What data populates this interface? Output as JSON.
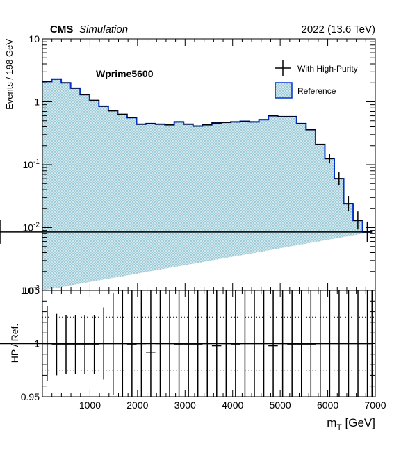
{
  "header": {
    "experiment": "CMS",
    "status": "Simulation",
    "energy_label": "2022 (13.6 TeV)"
  },
  "chart_data": [
    {
      "type": "histogram",
      "panel": "main",
      "annotation": "Wprime5600",
      "ylabel": "Events / 198 GeV",
      "yscale": "log",
      "ylim": [
        0.001,
        10
      ],
      "y_ticks": [
        {
          "value": 10,
          "base": "10",
          "exp": ""
        },
        {
          "value": 1,
          "base": "1",
          "exp": ""
        },
        {
          "value": 0.1,
          "base": "10",
          "exp": "-1"
        },
        {
          "value": 0.01,
          "base": "10",
          "exp": "-2"
        },
        {
          "value": 0.001,
          "base": "10",
          "exp": "-3"
        }
      ],
      "xlim": [
        0,
        7000
      ],
      "bin_width": 198,
      "bin_edges": [
        0,
        198,
        396,
        594,
        792,
        990,
        1188,
        1386,
        1584,
        1782,
        1980,
        2178,
        2376,
        2574,
        2772,
        2970,
        3168,
        3366,
        3564,
        3762,
        3960,
        4158,
        4356,
        4554,
        4752,
        4950,
        5148,
        5346,
        5544,
        5742,
        5940,
        6138,
        6336,
        6534,
        6732,
        6930
      ],
      "series": [
        {
          "name": "Reference",
          "style": "filled-step",
          "line_color": "#0033cc",
          "fill_color": "#b9dde6",
          "values": [
            2.1,
            2.3,
            2.0,
            1.65,
            1.3,
            1.05,
            0.85,
            0.72,
            0.63,
            0.56,
            0.44,
            0.45,
            0.44,
            0.43,
            0.48,
            0.44,
            0.41,
            0.43,
            0.46,
            0.47,
            0.48,
            0.49,
            0.48,
            0.52,
            0.6,
            0.58,
            0.58,
            0.45,
            0.36,
            0.21,
            0.125,
            0.06,
            0.024,
            0.013,
            0.0085,
            0.0085
          ]
        },
        {
          "name": "With High-Purity",
          "style": "points-with-errors",
          "color": "#000000",
          "values": [
            2.1,
            2.3,
            2.0,
            1.65,
            1.3,
            1.05,
            0.85,
            0.72,
            0.63,
            0.56,
            0.44,
            0.45,
            0.44,
            0.43,
            0.48,
            0.44,
            0.41,
            0.43,
            0.46,
            0.47,
            0.48,
            0.49,
            0.48,
            0.52,
            0.6,
            0.58,
            0.58,
            0.45,
            0.36,
            0.21,
            0.125,
            0.06,
            0.024,
            0.013,
            0.0085,
            0.0085
          ]
        }
      ],
      "legend": {
        "placement": "top-right",
        "entries": [
          "With High-Purity",
          "Reference"
        ]
      }
    },
    {
      "type": "ratio",
      "panel": "ratio",
      "ylabel": "HP / Ref.",
      "xlabel_main": "m",
      "xlabel_sub": "T",
      "xlabel_unit": " [GeV]",
      "ylim": [
        0.95,
        1.05
      ],
      "y_ticks": [
        "0.95",
        "1",
        "1.05"
      ],
      "x_ticks": [
        "1000",
        "2000",
        "3000",
        "4000",
        "5000",
        "6000",
        "7000"
      ],
      "x_tick_values": [
        1000,
        2000,
        3000,
        4000,
        5000,
        6000,
        7000
      ],
      "reference_lines": [
        0.975,
        1.0,
        1.025
      ],
      "x_centers": [
        100,
        299,
        497,
        695,
        893,
        1091,
        1289,
        1487,
        1685,
        1883,
        2081,
        2279,
        2477,
        2675,
        2873,
        3071,
        3269,
        3467,
        3665,
        3863,
        4061,
        4259,
        4457,
        4655,
        4853,
        5051,
        5249,
        5447,
        5645,
        5843,
        6041,
        6239,
        6437,
        6635,
        6833,
        6931
      ],
      "values": [
        1.0,
        0.999,
        0.999,
        0.999,
        0.999,
        0.999,
        1.0,
        1.0,
        1.0,
        0.999,
        1.0,
        0.992,
        1.0,
        1.0,
        0.999,
        0.999,
        0.999,
        1.0,
        0.998,
        1.0,
        0.999,
        1.0,
        1.0,
        1.0,
        0.998,
        1.0,
        0.999,
        0.999,
        0.999,
        1.0,
        1.0,
        1.0,
        1.0,
        1.0,
        1.0,
        1.0
      ],
      "errors": [
        0.035,
        0.029,
        0.028,
        0.028,
        0.028,
        0.028,
        0.034,
        0.048,
        0.08,
        0.1,
        0.1,
        0.1,
        0.1,
        0.1,
        0.1,
        0.1,
        0.1,
        0.1,
        0.1,
        0.1,
        0.1,
        0.1,
        0.1,
        0.1,
        0.1,
        0.1,
        0.1,
        0.1,
        0.1,
        0.1,
        0.1,
        0.1,
        0.1,
        0.1,
        0.1,
        0.1
      ]
    }
  ]
}
